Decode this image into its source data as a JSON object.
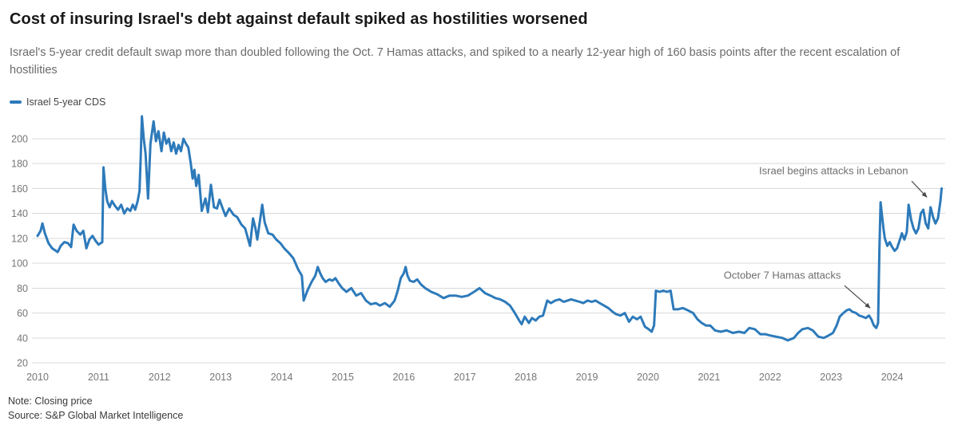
{
  "header": {
    "title": "Cost of insuring Israel's debt against default spiked as hostilities worsened",
    "subtitle": "Israel's 5-year credit default swap more than doubled following the Oct. 7 Hamas attacks, and spiked to a nearly 12-year high of 160 basis points after the recent escalation of hostilities"
  },
  "legend": {
    "label": "Israel 5-year CDS",
    "color": "#2d7aba"
  },
  "footer": {
    "note": "Note: Closing price",
    "source": "Source: S&P Global Market Intelligence"
  },
  "chart_data": {
    "type": "line",
    "title": "Cost of insuring Israel's debt against default spiked as hostilities worsened",
    "xlabel": "",
    "ylabel": "",
    "grid": true,
    "legend_position": "top-left",
    "x_ticks": [
      2010,
      2011,
      2012,
      2013,
      2014,
      2015,
      2016,
      2017,
      2018,
      2019,
      2020,
      2021,
      2022,
      2023,
      2024
    ],
    "y_ticks": [
      20,
      40,
      60,
      80,
      100,
      120,
      140,
      160,
      180,
      200
    ],
    "xlim": [
      2010,
      2025
    ],
    "ylim": [
      20,
      220
    ],
    "annotations": [
      {
        "text": "October 7 Hamas attacks",
        "align": "right",
        "text_year": 2023.16,
        "text_value": 90,
        "arrow": {
          "from_year": 2023.22,
          "from_value": 82,
          "to_year": 2023.64,
          "to_value": 64
        }
      },
      {
        "text": "Israel begins attacks in Lebanon",
        "align": "right",
        "text_year": 2024.26,
        "text_value": 174,
        "arrow": {
          "from_year": 2024.32,
          "from_value": 166,
          "to_year": 2024.57,
          "to_value": 153
        }
      }
    ],
    "series": [
      {
        "name": "Israel 5-year CDS",
        "color": "#2d7aba",
        "points": [
          [
            2010.0,
            122
          ],
          [
            2010.05,
            126
          ],
          [
            2010.08,
            132
          ],
          [
            2010.12,
            124
          ],
          [
            2010.18,
            116
          ],
          [
            2010.24,
            112
          ],
          [
            2010.3,
            110
          ],
          [
            2010.33,
            109
          ],
          [
            2010.38,
            114
          ],
          [
            2010.44,
            117
          ],
          [
            2010.5,
            116
          ],
          [
            2010.55,
            113
          ],
          [
            2010.59,
            131
          ],
          [
            2010.64,
            126
          ],
          [
            2010.7,
            123
          ],
          [
            2010.75,
            126
          ],
          [
            2010.8,
            112
          ],
          [
            2010.85,
            119
          ],
          [
            2010.9,
            122
          ],
          [
            2010.95,
            118
          ],
          [
            2011.0,
            115
          ],
          [
            2011.06,
            117
          ],
          [
            2011.08,
            177
          ],
          [
            2011.11,
            160
          ],
          [
            2011.14,
            150
          ],
          [
            2011.18,
            145
          ],
          [
            2011.22,
            150
          ],
          [
            2011.27,
            146
          ],
          [
            2011.32,
            143
          ],
          [
            2011.37,
            147
          ],
          [
            2011.42,
            140
          ],
          [
            2011.47,
            144
          ],
          [
            2011.52,
            142
          ],
          [
            2011.56,
            147
          ],
          [
            2011.6,
            143
          ],
          [
            2011.64,
            150
          ],
          [
            2011.67,
            158
          ],
          [
            2011.69,
            185
          ],
          [
            2011.71,
            218
          ],
          [
            2011.74,
            200
          ],
          [
            2011.77,
            188
          ],
          [
            2011.81,
            152
          ],
          [
            2011.85,
            196
          ],
          [
            2011.9,
            214
          ],
          [
            2011.94,
            198
          ],
          [
            2011.98,
            206
          ],
          [
            2012.03,
            190
          ],
          [
            2012.07,
            205
          ],
          [
            2012.11,
            196
          ],
          [
            2012.15,
            200
          ],
          [
            2012.19,
            190
          ],
          [
            2012.23,
            197
          ],
          [
            2012.27,
            188
          ],
          [
            2012.31,
            195
          ],
          [
            2012.35,
            190
          ],
          [
            2012.39,
            200
          ],
          [
            2012.43,
            196
          ],
          [
            2012.47,
            193
          ],
          [
            2012.51,
            180
          ],
          [
            2012.54,
            168
          ],
          [
            2012.57,
            175
          ],
          [
            2012.6,
            162
          ],
          [
            2012.64,
            171
          ],
          [
            2012.69,
            142
          ],
          [
            2012.75,
            152
          ],
          [
            2012.79,
            141
          ],
          [
            2012.84,
            163
          ],
          [
            2012.89,
            145
          ],
          [
            2012.94,
            144
          ],
          [
            2012.98,
            151
          ],
          [
            2013.04,
            143
          ],
          [
            2013.08,
            138
          ],
          [
            2013.14,
            144
          ],
          [
            2013.21,
            139
          ],
          [
            2013.27,
            137
          ],
          [
            2013.34,
            131
          ],
          [
            2013.4,
            128
          ],
          [
            2013.48,
            114
          ],
          [
            2013.53,
            136
          ],
          [
            2013.57,
            128
          ],
          [
            2013.6,
            119
          ],
          [
            2013.68,
            147
          ],
          [
            2013.72,
            133
          ],
          [
            2013.78,
            124
          ],
          [
            2013.85,
            123
          ],
          [
            2013.91,
            119
          ],
          [
            2013.98,
            116
          ],
          [
            2014.04,
            112
          ],
          [
            2014.12,
            108
          ],
          [
            2014.19,
            104
          ],
          [
            2014.27,
            95
          ],
          [
            2014.33,
            90
          ],
          [
            2014.36,
            70
          ],
          [
            2014.42,
            78
          ],
          [
            2014.49,
            85
          ],
          [
            2014.55,
            90
          ],
          [
            2014.59,
            97
          ],
          [
            2014.63,
            92
          ],
          [
            2014.67,
            88
          ],
          [
            2014.72,
            85
          ],
          [
            2014.78,
            87
          ],
          [
            2014.83,
            86
          ],
          [
            2014.88,
            88
          ],
          [
            2014.93,
            84
          ],
          [
            2014.99,
            80
          ],
          [
            2015.06,
            77
          ],
          [
            2015.14,
            80
          ],
          [
            2015.22,
            74
          ],
          [
            2015.3,
            76
          ],
          [
            2015.38,
            70
          ],
          [
            2015.46,
            67
          ],
          [
            2015.54,
            68
          ],
          [
            2015.61,
            66
          ],
          [
            2015.69,
            68
          ],
          [
            2015.77,
            65
          ],
          [
            2015.85,
            70
          ],
          [
            2015.9,
            78
          ],
          [
            2015.95,
            88
          ],
          [
            2016.0,
            92
          ],
          [
            2016.03,
            97
          ],
          [
            2016.06,
            90
          ],
          [
            2016.1,
            86
          ],
          [
            2016.16,
            85
          ],
          [
            2016.22,
            87
          ],
          [
            2016.28,
            83
          ],
          [
            2016.35,
            80
          ],
          [
            2016.45,
            77
          ],
          [
            2016.55,
            75
          ],
          [
            2016.65,
            72
          ],
          [
            2016.75,
            74
          ],
          [
            2016.85,
            74
          ],
          [
            2016.95,
            73
          ],
          [
            2017.05,
            74
          ],
          [
            2017.15,
            77
          ],
          [
            2017.24,
            80
          ],
          [
            2017.33,
            76
          ],
          [
            2017.42,
            74
          ],
          [
            2017.5,
            72
          ],
          [
            2017.58,
            71
          ],
          [
            2017.66,
            69
          ],
          [
            2017.74,
            66
          ],
          [
            2017.82,
            60
          ],
          [
            2017.89,
            54
          ],
          [
            2017.93,
            51
          ],
          [
            2017.98,
            57
          ],
          [
            2018.05,
            52
          ],
          [
            2018.1,
            56
          ],
          [
            2018.16,
            54
          ],
          [
            2018.22,
            57
          ],
          [
            2018.28,
            58
          ],
          [
            2018.35,
            70
          ],
          [
            2018.41,
            68
          ],
          [
            2018.48,
            70
          ],
          [
            2018.55,
            71
          ],
          [
            2018.62,
            69
          ],
          [
            2018.68,
            70
          ],
          [
            2018.74,
            71
          ],
          [
            2018.81,
            70
          ],
          [
            2018.88,
            69
          ],
          [
            2018.94,
            68
          ],
          [
            2019.01,
            70
          ],
          [
            2019.08,
            69
          ],
          [
            2019.14,
            70
          ],
          [
            2019.21,
            68
          ],
          [
            2019.28,
            66
          ],
          [
            2019.35,
            64
          ],
          [
            2019.42,
            61
          ],
          [
            2019.48,
            59
          ],
          [
            2019.55,
            58
          ],
          [
            2019.62,
            60
          ],
          [
            2019.69,
            53
          ],
          [
            2019.75,
            57
          ],
          [
            2019.82,
            55
          ],
          [
            2019.88,
            57
          ],
          [
            2019.95,
            49
          ],
          [
            2020.01,
            47
          ],
          [
            2020.06,
            45
          ],
          [
            2020.1,
            50
          ],
          [
            2020.13,
            78
          ],
          [
            2020.19,
            77
          ],
          [
            2020.25,
            78
          ],
          [
            2020.31,
            77
          ],
          [
            2020.37,
            78
          ],
          [
            2020.42,
            63
          ],
          [
            2020.49,
            63
          ],
          [
            2020.57,
            64
          ],
          [
            2020.66,
            62
          ],
          [
            2020.74,
            60
          ],
          [
            2020.81,
            55
          ],
          [
            2020.88,
            52
          ],
          [
            2020.95,
            50
          ],
          [
            2021.02,
            50
          ],
          [
            2021.1,
            46
          ],
          [
            2021.19,
            45
          ],
          [
            2021.29,
            46
          ],
          [
            2021.39,
            44
          ],
          [
            2021.49,
            45
          ],
          [
            2021.58,
            44
          ],
          [
            2021.66,
            48
          ],
          [
            2021.75,
            47
          ],
          [
            2021.84,
            43
          ],
          [
            2021.92,
            43
          ],
          [
            2022.0,
            42
          ],
          [
            2022.1,
            41
          ],
          [
            2022.2,
            40
          ],
          [
            2022.29,
            38
          ],
          [
            2022.39,
            40
          ],
          [
            2022.46,
            44
          ],
          [
            2022.53,
            47
          ],
          [
            2022.62,
            48
          ],
          [
            2022.7,
            46
          ],
          [
            2022.79,
            41
          ],
          [
            2022.88,
            40
          ],
          [
            2022.96,
            42
          ],
          [
            2023.03,
            44
          ],
          [
            2023.09,
            50
          ],
          [
            2023.14,
            57
          ],
          [
            2023.2,
            60
          ],
          [
            2023.25,
            62
          ],
          [
            2023.3,
            63
          ],
          [
            2023.35,
            61
          ],
          [
            2023.41,
            60
          ],
          [
            2023.46,
            58
          ],
          [
            2023.52,
            57
          ],
          [
            2023.57,
            56
          ],
          [
            2023.62,
            58
          ],
          [
            2023.66,
            55
          ],
          [
            2023.7,
            50
          ],
          [
            2023.74,
            48
          ],
          [
            2023.77,
            52
          ],
          [
            2023.79,
            110
          ],
          [
            2023.81,
            149
          ],
          [
            2023.83,
            140
          ],
          [
            2023.86,
            127
          ],
          [
            2023.88,
            120
          ],
          [
            2023.92,
            114
          ],
          [
            2023.96,
            117
          ],
          [
            2024.0,
            113
          ],
          [
            2024.04,
            110
          ],
          [
            2024.08,
            112
          ],
          [
            2024.12,
            118
          ],
          [
            2024.16,
            124
          ],
          [
            2024.2,
            119
          ],
          [
            2024.24,
            125
          ],
          [
            2024.27,
            147
          ],
          [
            2024.31,
            135
          ],
          [
            2024.35,
            128
          ],
          [
            2024.39,
            124
          ],
          [
            2024.43,
            128
          ],
          [
            2024.47,
            140
          ],
          [
            2024.51,
            143
          ],
          [
            2024.55,
            132
          ],
          [
            2024.59,
            128
          ],
          [
            2024.63,
            145
          ],
          [
            2024.67,
            137
          ],
          [
            2024.71,
            132
          ],
          [
            2024.75,
            136
          ],
          [
            2024.79,
            150
          ],
          [
            2024.81,
            160
          ]
        ]
      }
    ]
  }
}
